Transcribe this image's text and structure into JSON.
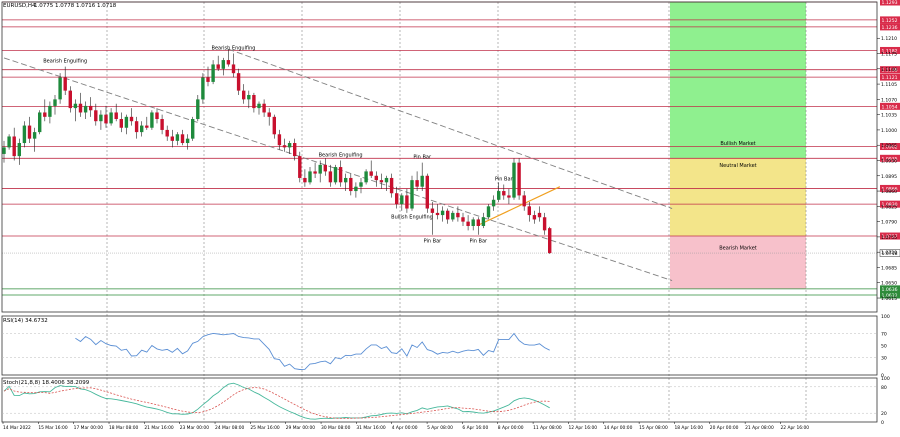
{
  "header": {
    "symbol": "EURUSD,H4",
    "ohlc": "1.0775 1.0778 1.0716 1.0718"
  },
  "colors": {
    "bg": "#ffffff",
    "bull_body": "#1e8a3c",
    "bear_body": "#c8102e",
    "wick": "#222222",
    "level_line": "#c0304a",
    "green_level": "#2e8b3a",
    "zone_bull": "#8ff08f",
    "zone_neutral": "#f3e58a",
    "zone_bear": "#f7c1cb",
    "trend_line": "#808080",
    "orange_line": "#f0a020",
    "rsi_line": "#5b8fd4",
    "stoch_main": "#48b89c",
    "stoch_signal": "#d9534f",
    "axis_text": "#000000",
    "price_label_bg": "#d92b4a",
    "price_label_green": "#2e8b3a",
    "current_label_bg": "#ffffff"
  },
  "zones": {
    "bull": "Bullish Market",
    "neutral": "Neutral Market",
    "bear": "Bearish Market"
  },
  "annotations": [
    {
      "text": "Bearish Engulfing",
      "index": 12,
      "anchor": "high"
    },
    {
      "text": "Bearish Engulfing",
      "index": 45,
      "anchor": "high"
    },
    {
      "text": "Bearish Engulfing",
      "index": 66,
      "anchor": "high"
    },
    {
      "text": "Pin Bar",
      "index": 82,
      "anchor": "high"
    },
    {
      "text": "Bullish Engulfing",
      "index": 80,
      "anchor": "low"
    },
    {
      "text": "Pin Bar",
      "index": 84,
      "anchor": "low"
    },
    {
      "text": "Pin Bar",
      "index": 93,
      "anchor": "low"
    },
    {
      "text": "Pin Bar",
      "index": 98,
      "anchor": "high"
    }
  ],
  "rsi": {
    "label": "RSI(14) 34.6732",
    "ticks": [
      "100",
      "70",
      "50",
      "30",
      "0"
    ]
  },
  "stoch": {
    "label": "Stoch(21,8,8) 18.4006 38.2099",
    "ticks": [
      "100",
      "80",
      "20",
      "0"
    ]
  },
  "chart_data": {
    "type": "candlestick",
    "price_range": [
      1.0583,
      1.1293
    ],
    "price_ticks": [
      "1.1210",
      "1.1175",
      "1.1140",
      "1.1105",
      "1.1070",
      "1.1035",
      "1.1000",
      "1.0965",
      "1.0930",
      "1.0895",
      "1.0860",
      "1.0825",
      "1.0790",
      "1.0755",
      "1.0720",
      "1.0685",
      "1.0650",
      "1.0615"
    ],
    "levels": [
      {
        "price": "1.1293",
        "color": "red"
      },
      {
        "price": "1.1252",
        "color": "red"
      },
      {
        "price": "1.1236",
        "color": "red"
      },
      {
        "price": "1.1182",
        "color": "red"
      },
      {
        "price": "1.1138",
        "color": "red"
      },
      {
        "price": "1.1121",
        "color": "red"
      },
      {
        "price": "1.1054",
        "color": "red"
      },
      {
        "price": "1.0962",
        "color": "red"
      },
      {
        "price": "1.0935",
        "color": "red"
      },
      {
        "price": "1.0866",
        "color": "red"
      },
      {
        "price": "1.0830",
        "color": "red"
      },
      {
        "price": "1.0757",
        "color": "red"
      },
      {
        "price": "1.0636",
        "color": "green"
      },
      {
        "price": "1.0622",
        "color": "green"
      }
    ],
    "current_price": "1.0718",
    "x_labels": [
      "14 Mar 2022",
      "15 Mar 16:00",
      "17 Mar 00:00",
      "18 Mar 08:00",
      "21 Mar 16:00",
      "23 Mar 00:00",
      "24 Mar 08:00",
      "25 Mar 16:00",
      "29 Mar 00:00",
      "30 Mar 08:00",
      "31 Mar 16:00",
      "4 Apr 00:00",
      "5 Apr 08:00",
      "6 Apr 16:00",
      "8 Apr 00:00",
      "11 Apr 08:00",
      "12 Apr 16:00",
      "14 Apr 00:00",
      "15 Apr 08:00",
      "18 Apr 16:00",
      "20 Apr 00:00",
      "21 Apr 08:00",
      "22 Apr 16:00"
    ],
    "candles": [
      [
        1.0945,
        1.0975,
        1.0925,
        1.096
      ],
      [
        1.096,
        1.099,
        1.0955,
        1.0985
      ],
      [
        1.0985,
        1.1005,
        1.093,
        1.094
      ],
      [
        1.094,
        1.098,
        1.092,
        1.097
      ],
      [
        1.097,
        1.102,
        1.096,
        1.101
      ],
      [
        1.101,
        1.103,
        1.097,
        1.098
      ],
      [
        1.098,
        1.1005,
        1.095,
        1.0995
      ],
      [
        1.0995,
        1.1045,
        1.099,
        1.104
      ],
      [
        1.104,
        1.107,
        1.102,
        1.103
      ],
      [
        1.103,
        1.1065,
        1.1015,
        1.1055
      ],
      [
        1.1055,
        1.108,
        1.1035,
        1.107
      ],
      [
        1.107,
        1.113,
        1.106,
        1.112
      ],
      [
        1.112,
        1.1145,
        1.108,
        1.109
      ],
      [
        1.109,
        1.11,
        1.104,
        1.105
      ],
      [
        1.105,
        1.107,
        1.102,
        1.106
      ],
      [
        1.106,
        1.1085,
        1.103,
        1.104
      ],
      [
        1.104,
        1.1065,
        1.1025,
        1.1055
      ],
      [
        1.1055,
        1.1075,
        1.103,
        1.1045
      ],
      [
        1.1045,
        1.106,
        1.101,
        1.102
      ],
      [
        1.102,
        1.1045,
        1.1,
        1.1035
      ],
      [
        1.1035,
        1.1055,
        1.1005,
        1.1015
      ],
      [
        1.1015,
        1.105,
        1.101,
        1.104
      ],
      [
        1.104,
        1.106,
        1.102,
        1.1025
      ],
      [
        1.1025,
        1.104,
        1.0995,
        1.1005
      ],
      [
        1.1005,
        1.1035,
        1.099,
        1.103
      ],
      [
        1.103,
        1.105,
        1.101,
        1.102
      ],
      [
        1.102,
        1.103,
        1.098,
        1.0995
      ],
      [
        1.0995,
        1.102,
        1.0985,
        1.101
      ],
      [
        1.101,
        1.103,
        1.1,
        1.1005
      ],
      [
        1.1005,
        1.1045,
        1.1,
        1.104
      ],
      [
        1.104,
        1.105,
        1.1015,
        1.1025
      ],
      [
        1.1025,
        1.1035,
        1.099,
        1.1
      ],
      [
        1.1,
        1.101,
        1.0975,
        1.0985
      ],
      [
        1.0985,
        1.1,
        1.096,
        1.0975
      ],
      [
        1.0975,
        1.0995,
        1.0965,
        1.099
      ],
      [
        1.099,
        1.1,
        1.0965,
        1.097
      ],
      [
        1.097,
        1.099,
        1.0955,
        1.098
      ],
      [
        1.098,
        1.103,
        1.0975,
        1.1025
      ],
      [
        1.1025,
        1.108,
        1.102,
        1.107
      ],
      [
        1.107,
        1.113,
        1.106,
        1.112
      ],
      [
        1.112,
        1.1145,
        1.11,
        1.111
      ],
      [
        1.111,
        1.116,
        1.1105,
        1.115
      ],
      [
        1.115,
        1.117,
        1.1135,
        1.114
      ],
      [
        1.114,
        1.1165,
        1.1125,
        1.116
      ],
      [
        1.116,
        1.1185,
        1.1145,
        1.115
      ],
      [
        1.115,
        1.1175,
        1.112,
        1.113
      ],
      [
        1.113,
        1.114,
        1.108,
        1.109
      ],
      [
        1.109,
        1.1105,
        1.106,
        1.107
      ],
      [
        1.107,
        1.109,
        1.105,
        1.108
      ],
      [
        1.108,
        1.1085,
        1.104,
        1.105
      ],
      [
        1.105,
        1.1065,
        1.1035,
        1.106
      ],
      [
        1.106,
        1.107,
        1.103,
        1.104
      ],
      [
        1.104,
        1.105,
        1.101,
        1.103
      ],
      [
        1.103,
        1.1035,
        1.098,
        1.099
      ],
      [
        1.099,
        1.1,
        1.0955,
        1.0965
      ],
      [
        1.0965,
        1.098,
        1.095,
        1.096
      ],
      [
        1.096,
        1.0975,
        1.0945,
        1.097
      ],
      [
        1.097,
        1.098,
        1.093,
        1.094
      ],
      [
        1.094,
        1.095,
        1.088,
        1.089
      ],
      [
        1.089,
        1.091,
        1.087,
        1.088
      ],
      [
        1.088,
        1.0915,
        1.0875,
        1.0905
      ],
      [
        1.0905,
        1.0925,
        1.089,
        1.09
      ],
      [
        1.09,
        1.093,
        1.088,
        1.092
      ],
      [
        1.092,
        1.0935,
        1.0895,
        1.0905
      ],
      [
        1.0905,
        1.092,
        1.087,
        1.088
      ],
      [
        1.088,
        1.092,
        1.0875,
        1.0915
      ],
      [
        1.0915,
        1.093,
        1.087,
        1.088
      ],
      [
        1.088,
        1.09,
        1.086,
        1.089
      ],
      [
        1.089,
        1.09,
        1.085,
        1.086
      ],
      [
        1.086,
        1.088,
        1.0845,
        1.087
      ],
      [
        1.087,
        1.089,
        1.0855,
        1.088
      ],
      [
        1.088,
        1.091,
        1.0875,
        1.0905
      ],
      [
        1.0905,
        1.093,
        1.089,
        1.0895
      ],
      [
        1.0895,
        1.0905,
        1.087,
        1.0885
      ],
      [
        1.0885,
        1.09,
        1.0865,
        1.088
      ],
      [
        1.088,
        1.0895,
        1.086,
        1.089
      ],
      [
        1.089,
        1.09,
        1.0845,
        1.0855
      ],
      [
        1.0855,
        1.087,
        1.082,
        1.083
      ],
      [
        1.083,
        1.0855,
        1.0815,
        1.085
      ],
      [
        1.085,
        1.0865,
        1.081,
        1.082
      ],
      [
        1.082,
        1.0895,
        1.0815,
        1.0885
      ],
      [
        1.0885,
        1.0905,
        1.086,
        1.087
      ],
      [
        1.087,
        1.0925,
        1.086,
        1.0895
      ],
      [
        1.0895,
        1.09,
        1.081,
        1.082
      ],
      [
        1.082,
        1.0835,
        1.076,
        1.081
      ],
      [
        1.081,
        1.083,
        1.0795,
        1.0805
      ],
      [
        1.0805,
        1.0825,
        1.079,
        1.0815
      ],
      [
        1.0815,
        1.082,
        1.0785,
        1.0795
      ],
      [
        1.0795,
        1.0815,
        1.079,
        1.081
      ],
      [
        1.081,
        1.0825,
        1.079,
        1.08
      ],
      [
        1.08,
        1.081,
        1.078,
        1.079
      ],
      [
        1.079,
        1.0805,
        1.077,
        1.078
      ],
      [
        1.078,
        1.08,
        1.077,
        1.0795
      ],
      [
        1.0795,
        1.08,
        1.076,
        1.078
      ],
      [
        1.078,
        1.081,
        1.0775,
        1.08
      ],
      [
        1.08,
        1.083,
        1.0795,
        1.0825
      ],
      [
        1.0825,
        1.085,
        1.0815,
        1.084
      ],
      [
        1.084,
        1.088,
        1.0835,
        1.086
      ],
      [
        1.086,
        1.0875,
        1.084,
        1.085
      ],
      [
        1.085,
        1.0865,
        1.083,
        1.0845
      ],
      [
        1.0845,
        1.0935,
        1.084,
        1.0925
      ],
      [
        1.0925,
        1.0935,
        1.084,
        1.085
      ],
      [
        1.085,
        1.086,
        1.0815,
        1.0825
      ],
      [
        1.0825,
        1.0835,
        1.079,
        1.0805
      ],
      [
        1.0805,
        1.0815,
        1.0785,
        1.0795
      ],
      [
        1.081,
        1.0825,
        1.079,
        1.08
      ],
      [
        1.08,
        1.081,
        1.076,
        1.077
      ],
      [
        1.0775,
        1.0778,
        1.0716,
        1.0718
      ]
    ],
    "trendlines": [
      {
        "p1": {
          "index": 0,
          "price": 1.1165
        },
        "p2": {
          "index": 131,
          "price": 1.0655
        }
      },
      {
        "p1": {
          "index": 44,
          "price": 1.1185
        },
        "p2": {
          "index": 131,
          "price": 1.082
        }
      },
      {
        "p1": {
          "index": 93,
          "price": 1.0782
        },
        "p2": {
          "index": 109,
          "price": 1.087
        }
      }
    ]
  }
}
